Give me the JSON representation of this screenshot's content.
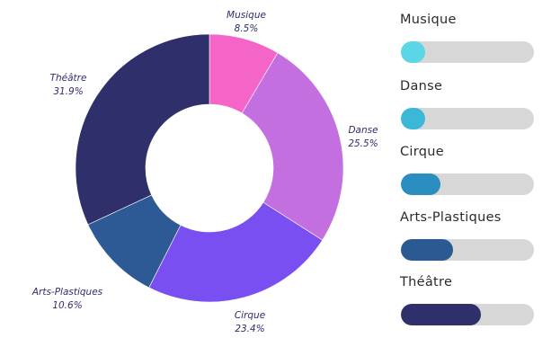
{
  "chart_data": {
    "type": "pie",
    "donut": true,
    "slices": [
      {
        "label": "Musique",
        "value": 8.5,
        "value_label": "8.5%",
        "color": "#f565c8"
      },
      {
        "label": "Danse",
        "value": 25.5,
        "value_label": "25.5%",
        "color": "#c46fe0"
      },
      {
        "label": "Cirque",
        "value": 23.4,
        "value_label": "23.4%",
        "color": "#7a4ff2"
      },
      {
        "label": "Arts-Plastiques",
        "value": 10.6,
        "value_label": "10.6%",
        "color": "#2d5a94"
      },
      {
        "label": "Théâtre",
        "value": 31.9,
        "value_label": "31.9%",
        "color": "#2e2f6b"
      }
    ],
    "label_color": "#2e2f6b",
    "legend_bars": [
      {
        "label": "Musique",
        "level": 0.18,
        "color": "#5ad6e6"
      },
      {
        "label": "Danse",
        "level": 0.18,
        "color": "#3bb8d8"
      },
      {
        "label": "Cirque",
        "level": 0.3,
        "color": "#2a8ec0"
      },
      {
        "label": "Arts-Plastiques",
        "level": 0.39,
        "color": "#2b5a92"
      },
      {
        "label": "Théâtre",
        "level": 0.6,
        "color": "#2e2f6b"
      }
    ],
    "track_color": "#d7d7d7"
  }
}
